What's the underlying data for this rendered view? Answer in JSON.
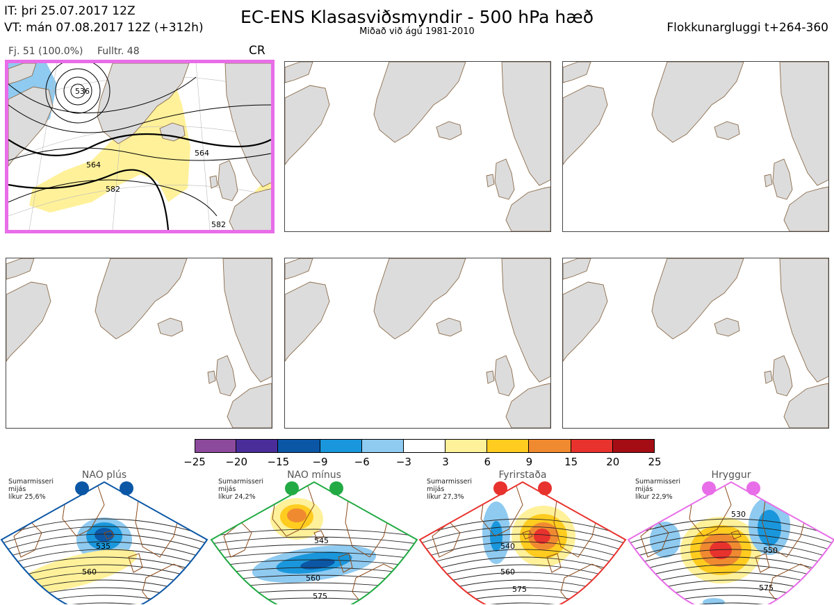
{
  "header": {
    "it_line": "IT: þri 25.07.2017 12Z",
    "vt_line": "VT: mán 07.08.2017 12Z  (+312h)",
    "title": "EC-ENS Klasasviðsmyndir - 500 hPa hæð",
    "subtitle": "Miðað við ágú 1981-2010",
    "window": "Flokkunargluggi t+264-360"
  },
  "cluster": {
    "members": "Fj. 51 (100.0%)",
    "control": "Fulltr. 48",
    "code": "CR"
  },
  "main_map_labels": [
    "536",
    "564",
    "564",
    "582",
    "582"
  ],
  "colorbar": {
    "ticks": [
      "−25",
      "−20",
      "−15",
      "−9",
      "−6",
      "−3",
      "3",
      "6",
      "9",
      "15",
      "20",
      "25"
    ],
    "colors": [
      "#8c4a9c",
      "#4b2d9a",
      "#0b57a6",
      "#1a97dc",
      "#8fcaf0",
      "#ffffff",
      "#fff19a",
      "#ffcc1f",
      "#f08a30",
      "#e8322d",
      "#a50d14"
    ]
  },
  "regimes": [
    {
      "name": "NAO plús",
      "note_1": "Sumarmisseri",
      "note_2": "mijás",
      "note_3": "líkur 25,6%",
      "color": "#0b57a6",
      "labels": [
        "535",
        "560"
      ]
    },
    {
      "name": "NAO mínus",
      "note_1": "Sumarmisseri",
      "note_2": "mijás",
      "note_3": "líkur 24,2%",
      "color": "#22aa44",
      "labels": [
        "545",
        "560",
        "575"
      ]
    },
    {
      "name": "Fyrirstaða",
      "note_1": "Sumarmisseri",
      "note_2": "mijás",
      "note_3": "líkur 27,3%",
      "color": "#e8322d",
      "labels": [
        "540",
        "560",
        "575"
      ]
    },
    {
      "name": "Hryggur",
      "note_1": "Sumarmisseri",
      "note_2": "mijás",
      "note_3": "líkur 22,9%",
      "color": "#e86de8",
      "labels": [
        "530",
        "550",
        "575"
      ]
    }
  ],
  "icons": {
    "empty_map": "land-outline-map",
    "regime_marker": "circle-marker"
  }
}
